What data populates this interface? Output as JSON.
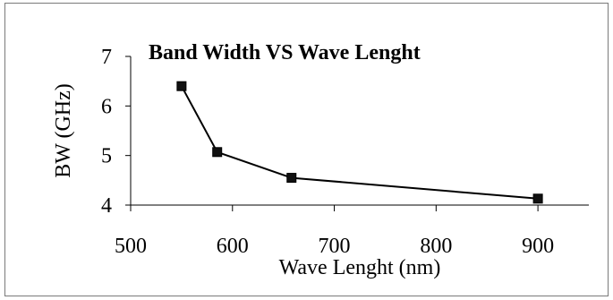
{
  "chart_data": {
    "type": "line",
    "title": "Band Width VS Wave Lenght",
    "xlabel": "Wave Lenght (nm)",
    "ylabel": "BW (GHz)",
    "xlim": [
      500,
      950
    ],
    "ylim": [
      4,
      7
    ],
    "xticks": [
      500,
      600,
      700,
      800,
      900
    ],
    "yticks": [
      4,
      5,
      6,
      7
    ],
    "grid": false,
    "legend": "none",
    "series": [
      {
        "x": [
          550,
          585,
          658,
          900
        ],
        "y": [
          6.4,
          5.07,
          4.55,
          4.13
        ],
        "color": "#000000",
        "marker": "square"
      }
    ]
  }
}
